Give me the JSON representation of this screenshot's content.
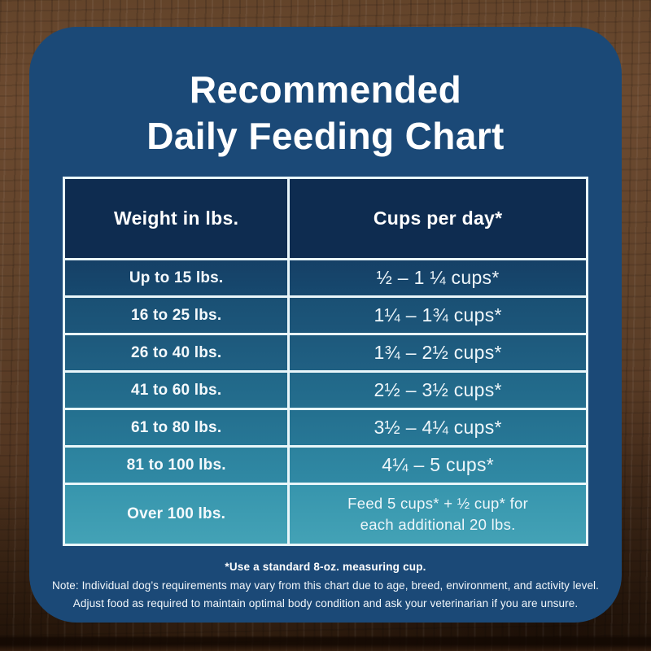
{
  "card": {
    "title_line1": "Recommended",
    "title_line2": "Daily Feeding Chart"
  },
  "table": {
    "columns": [
      "Weight in lbs.",
      "Cups per day*"
    ],
    "rows": [
      {
        "weight": "Up to 15 lbs.",
        "cups": "½ – 1 ¼ cups*",
        "bg_top": "#154066",
        "bg_bottom": "#17496f"
      },
      {
        "weight": "16 to 25 lbs.",
        "cups": "1¼ – 1¾  cups*",
        "bg_top": "#1a5074",
        "bg_bottom": "#1c567a"
      },
      {
        "weight": "26 to 40 lbs.",
        "cups": "1¾ – 2½ cups*",
        "bg_top": "#1d597c",
        "bg_bottom": "#206083"
      },
      {
        "weight": "41 to 60 lbs.",
        "cups": "2½ – 3½ cups*",
        "bg_top": "#216788",
        "bg_bottom": "#246e8e"
      },
      {
        "weight": "61 to 80 lbs.",
        "cups": "3½ – 4¼ cups*",
        "bg_top": "#24708f",
        "bg_bottom": "#277796"
      },
      {
        "weight": "81 to 100 lbs.",
        "cups": "4¼ – 5 cups*",
        "bg_top": "#2c829e",
        "bg_bottom": "#3089a4"
      },
      {
        "weight": "Over 100 lbs.",
        "cups": "Feed 5 cups* + ½ cup* for\neach additional 20 lbs.",
        "bg_top": "#3795ad",
        "bg_bottom": "#43a2b6"
      }
    ]
  },
  "footer": {
    "footnote": "*Use a standard 8-oz. measuring cup.",
    "note_line1": "Note: Individual dog’s requirements may vary from this chart due to age, breed, environment, and activity level.",
    "note_line2": "Adjust food as required to maintain optimal body condition and ask your veterinarian if you are unsure."
  },
  "colors": {
    "card_bg": "#1b4977",
    "header_bg": "#0e2c50",
    "table_border": "#e9f6fa",
    "title_color": "#ffffff",
    "wood_light": "#6c4a30",
    "wood_dark": "#301d0e"
  },
  "chart_data": {
    "type": "table",
    "title": "Recommended Daily Feeding Chart",
    "columns": [
      "Weight in lbs.",
      "Cups per day*"
    ],
    "rows": [
      [
        "Up to 15 lbs.",
        "½ – 1 ¼ cups*"
      ],
      [
        "16 to 25 lbs.",
        "1¼ – 1¾ cups*"
      ],
      [
        "26 to 40 lbs.",
        "1¾ – 2½ cups*"
      ],
      [
        "41 to 60 lbs.",
        "2½ – 3½ cups*"
      ],
      [
        "61 to 80 lbs.",
        "3½ – 4¼ cups*"
      ],
      [
        "81 to 100 lbs.",
        "4¼ – 5 cups*"
      ],
      [
        "Over 100 lbs.",
        "Feed 5 cups* + ½ cup* for each additional 20 lbs."
      ]
    ],
    "footnote": "*Use a standard 8-oz. measuring cup."
  }
}
